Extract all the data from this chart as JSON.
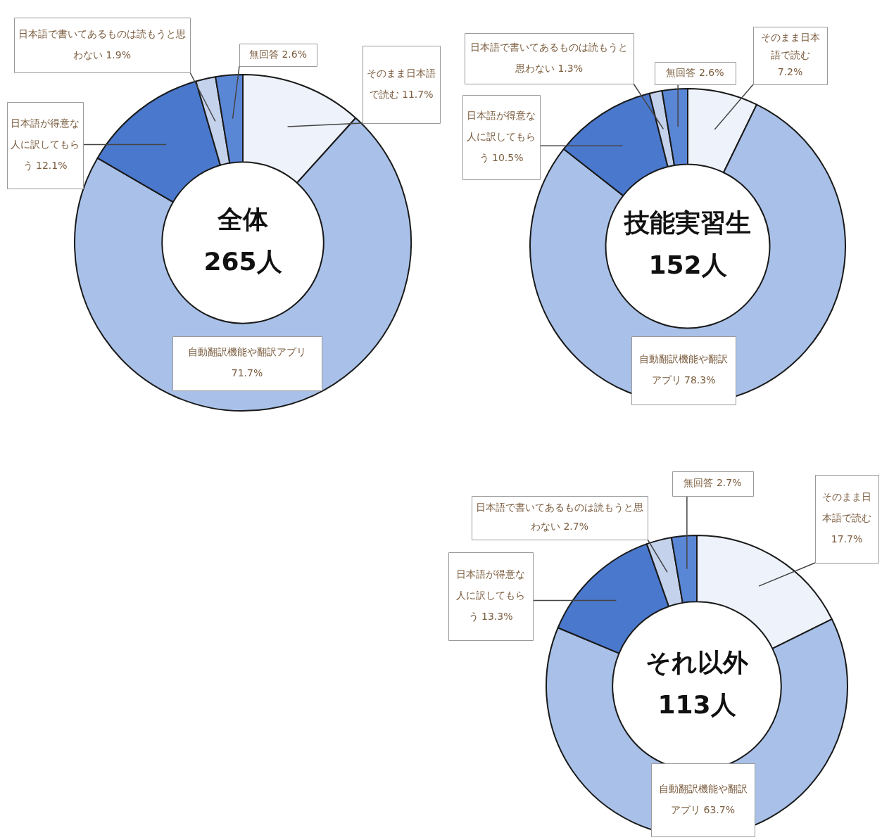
{
  "chart_data": [
    {
      "type": "donut",
      "title": "全体",
      "subtitle": "265人",
      "categories": [
        "そのまま日本語で読む",
        "自動翻訳機能や翻訳アプリ",
        "日本語が得意な人に訳してもらう",
        "日本語で書いてあるものは読もうと思わない",
        "無回答"
      ],
      "values": [
        11.7,
        71.7,
        12.1,
        1.9,
        2.6
      ],
      "value_labels": [
        "11.7%",
        "71.7%",
        "12.1%",
        "1.9%",
        "2.6%"
      ],
      "colors": [
        "#eef2fa",
        "#a9c1e8",
        "#4a78cc",
        "#c4d2ec",
        "#5a86d6"
      ]
    },
    {
      "type": "donut",
      "title": "技能実習生",
      "subtitle": "152人",
      "categories": [
        "そのまま日本語で読む",
        "自動翻訳機能や翻訳アプリ",
        "日本語が得意な人に訳してもらう",
        "日本語で書いてあるものは読もうと思わない",
        "無回答"
      ],
      "values": [
        7.2,
        78.3,
        10.5,
        1.3,
        2.6
      ],
      "value_labels": [
        "7.2%",
        "78.3%",
        "10.5%",
        "1.3%",
        "2.6%"
      ],
      "colors": [
        "#eef2fa",
        "#a9c1e8",
        "#4a78cc",
        "#c4d2ec",
        "#5a86d6"
      ]
    },
    {
      "type": "donut",
      "title": "それ以外",
      "subtitle": "113人",
      "categories": [
        "そのまま日本語で読む",
        "自動翻訳機能や翻訳アプリ",
        "日本語が得意な人に訳してもらう",
        "日本語で書いてあるものは読もうと思わない",
        "無回答"
      ],
      "values": [
        17.7,
        63.7,
        13.3,
        2.7,
        2.7
      ],
      "value_labels": [
        "17.7%",
        "63.7%",
        "13.3%",
        "2.7%",
        "2.7%"
      ],
      "colors": [
        "#eef2fa",
        "#a9c1e8",
        "#4a78cc",
        "#c4d2ec",
        "#5a86d6"
      ]
    }
  ]
}
